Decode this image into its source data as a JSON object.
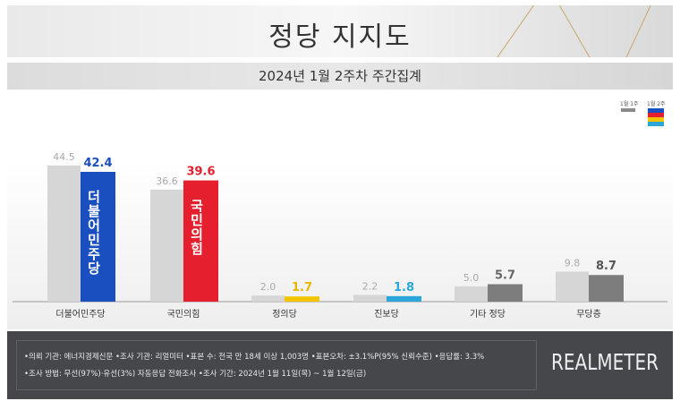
{
  "header": {
    "title": "정당 지지도",
    "subtitle": "2024년 1월 2주차 주간집계"
  },
  "legend": [
    {
      "label": "1월 1주",
      "color": "#8a8a8a"
    },
    {
      "label": "1월 2주",
      "colors": [
        "#1a4fbf",
        "#e51f2d",
        "#f5c400",
        "#2aa7d8"
      ]
    }
  ],
  "chart_data": {
    "type": "bar",
    "title": "정당 지지도",
    "subtitle": "2024년 1월 2주차 주간집계",
    "categories": [
      "더불어민주당",
      "국민의힘",
      "정의당",
      "진보당",
      "기타 정당",
      "무당층"
    ],
    "series": [
      {
        "name": "1월 1주",
        "values": [
          44.5,
          36.6,
          2.0,
          2.2,
          5.0,
          9.8
        ],
        "color": "#d6d6d6"
      },
      {
        "name": "1월 2주",
        "values": [
          42.4,
          39.6,
          1.7,
          1.8,
          5.7,
          8.7
        ],
        "colors": [
          "#1a4fbf",
          "#e51f2d",
          "#f5c400",
          "#2aa7d8",
          "#7d7d7d",
          "#7d7d7d"
        ]
      }
    ],
    "value_label_colors": [
      "#1a4fbf",
      "#e51f2d",
      "#e6b800",
      "#2aa7d8",
      "#666666",
      "#555555"
    ],
    "bar_inner_labels": [
      "더불어민주당",
      "국민의힘"
    ],
    "ylim": [
      0,
      50
    ],
    "grid": false,
    "legend_position": "top-right"
  },
  "footer": {
    "line1": "•의뢰 기관: 에너지경제신문  •조사 기관: 리얼미터 •표본 수: 전국 만 18세 이상 1,003명 •표본오차: ±3.1%P(95% 신뢰수준) •응답률: 3.3%",
    "line2": "•조사 방법: 무선(97%)·유선(3%) 자동응답 전화조사 •조사 기간: 2024년 1월 11일(목) ~ 1월 12일(금)",
    "brand": "REALMETER"
  }
}
